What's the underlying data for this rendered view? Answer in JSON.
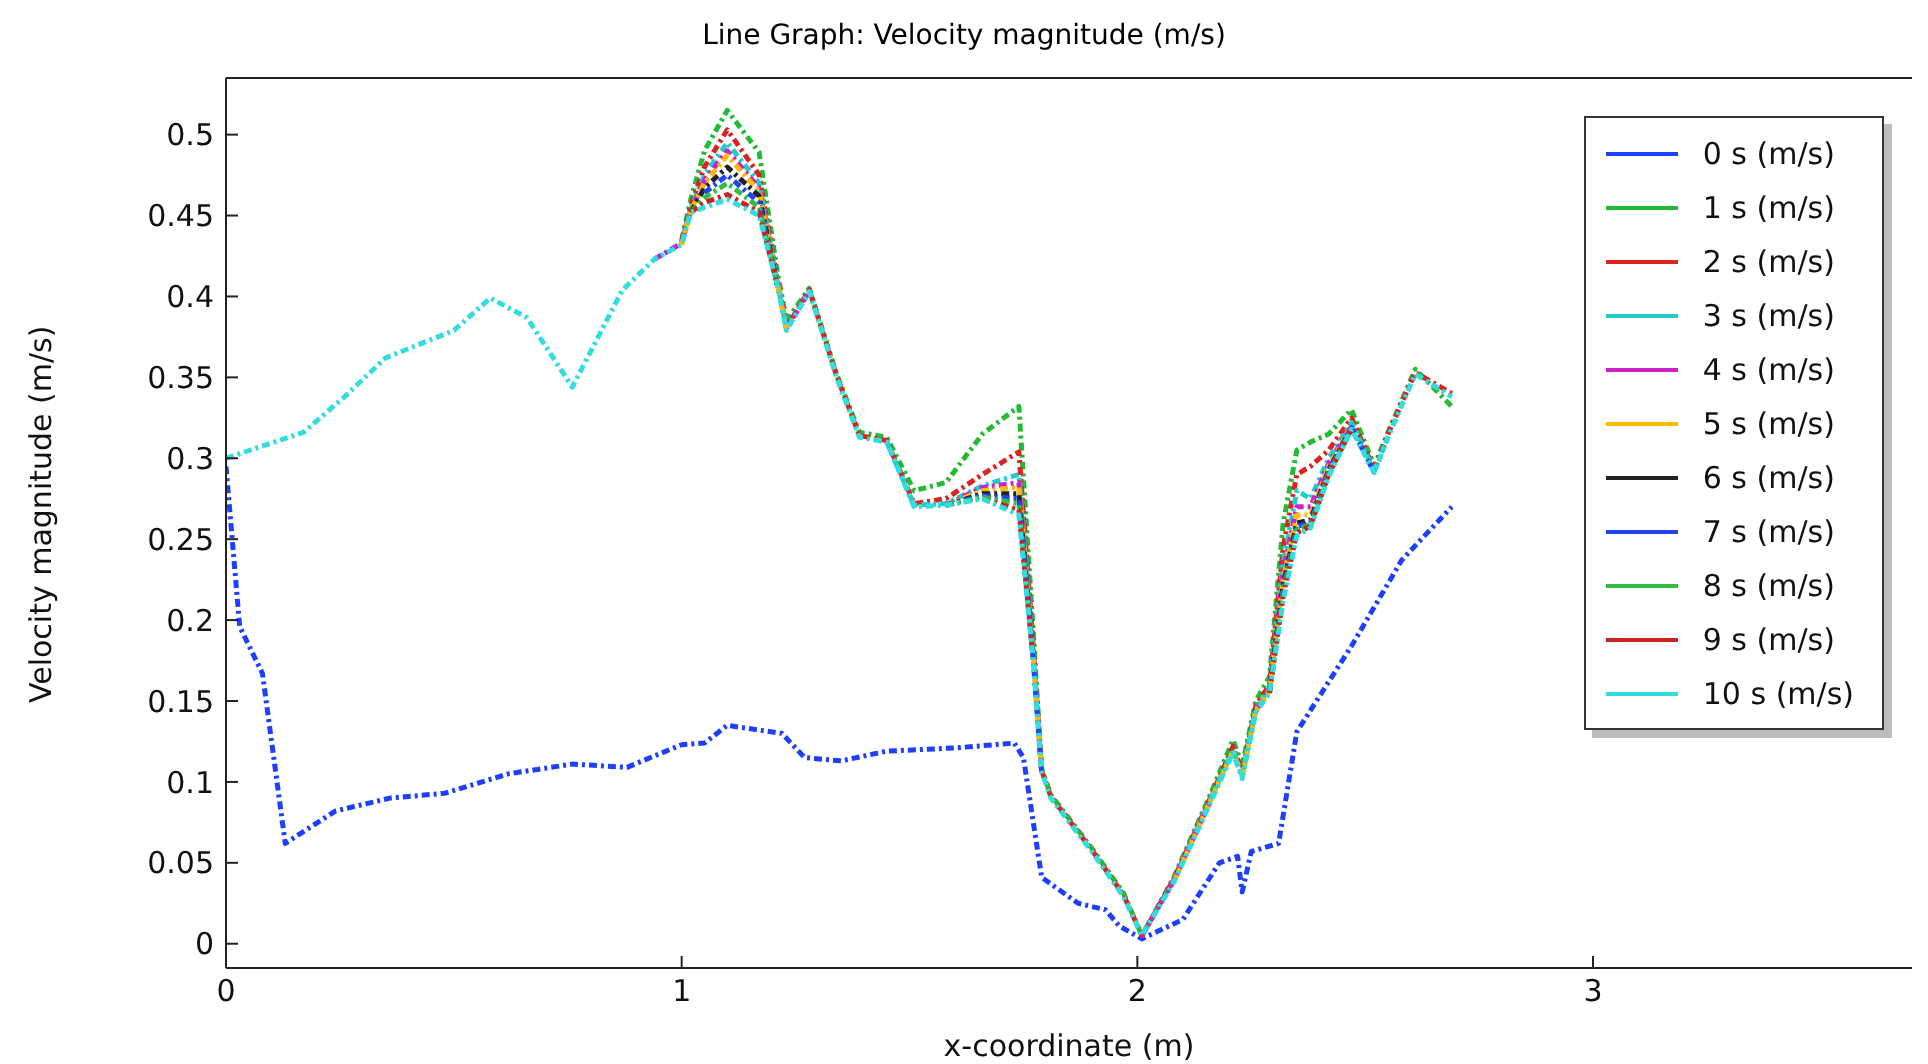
{
  "chart_data": {
    "type": "line",
    "title": "Line Graph: Velocity magnitude (m/s)",
    "xlabel": "x-coordinate (m)",
    "ylabel": "Velocity magnitude (m/s)",
    "x": [
      0,
      0.17,
      0.26,
      0.35,
      0.5,
      0.58,
      0.66,
      0.76,
      0.87,
      0.94,
      1.0,
      1.02,
      1.05,
      1.1,
      1.17,
      1.21,
      1.23,
      1.28,
      1.34,
      1.39,
      1.45,
      1.51,
      1.58,
      1.66,
      1.74,
      1.77,
      1.79,
      1.81,
      1.9,
      1.97,
      2.01,
      2.08,
      2.16,
      2.21,
      2.23,
      2.26,
      2.29,
      2.32,
      2.35,
      2.38,
      2.42,
      2.47,
      2.52,
      2.55,
      2.61,
      2.69
    ],
    "series": [
      {
        "name": "0 s (m/s)",
        "color": "#1f3fff",
        "x": [
          0,
          0.03,
          0.08,
          0.13,
          0.24,
          0.36,
          0.48,
          0.62,
          0.76,
          0.88,
          1.0,
          1.05,
          1.1,
          1.17,
          1.22,
          1.27,
          1.35,
          1.45,
          1.6,
          1.73,
          1.75,
          1.79,
          1.87,
          1.93,
          1.96,
          2.01,
          2.1,
          2.18,
          2.22,
          2.23,
          2.25,
          2.31,
          2.35,
          2.47,
          2.58,
          2.69
        ],
        "values": [
          0.295,
          0.196,
          0.167,
          0.062,
          0.082,
          0.09,
          0.093,
          0.105,
          0.111,
          0.109,
          0.123,
          0.124,
          0.135,
          0.132,
          0.13,
          0.115,
          0.113,
          0.119,
          0.121,
          0.124,
          0.115,
          0.041,
          0.025,
          0.021,
          0.011,
          0.003,
          0.015,
          0.05,
          0.054,
          0.032,
          0.057,
          0.062,
          0.131,
          0.184,
          0.237,
          0.27
        ]
      },
      {
        "name": "1 s (m/s)",
        "color": "#22bb33",
        "values": [
          null,
          null,
          null,
          null,
          null,
          null,
          null,
          null,
          null,
          null,
          0.435,
          0.46,
          0.49,
          0.515,
          0.489,
          0.415,
          0.385,
          0.405,
          0.352,
          0.316,
          0.313,
          0.28,
          0.285,
          0.315,
          0.332,
          0.2,
          0.108,
          0.092,
          0.059,
          0.031,
          0.005,
          0.041,
          0.092,
          0.126,
          0.11,
          0.15,
          0.165,
          0.26,
          0.305,
          0.31,
          0.315,
          0.33,
          0.295,
          0.316,
          0.355,
          0.332
        ]
      },
      {
        "name": "2 s (m/s)",
        "color": "#dd2222",
        "values": [
          null,
          null,
          null,
          null,
          null,
          null,
          null,
          null,
          null,
          null,
          0.434,
          0.456,
          0.48,
          0.503,
          0.475,
          0.41,
          0.381,
          0.404,
          0.351,
          0.314,
          0.311,
          0.272,
          0.275,
          0.29,
          0.304,
          0.19,
          0.107,
          0.091,
          0.058,
          0.03,
          0.005,
          0.04,
          0.09,
          0.122,
          0.106,
          0.147,
          0.16,
          0.245,
          0.29,
          0.295,
          0.305,
          0.325,
          0.293,
          0.315,
          0.353,
          0.34
        ]
      },
      {
        "name": "3 s (m/s)",
        "color": "#22cccc",
        "values": [
          null,
          null,
          null,
          null,
          null,
          null,
          null,
          null,
          null,
          0.423,
          0.433,
          0.454,
          0.475,
          0.495,
          0.47,
          0.409,
          0.38,
          null,
          null,
          null,
          0.31,
          0.271,
          0.272,
          0.283,
          0.29,
          0.185,
          0.106,
          null,
          null,
          null,
          0.005,
          0.039,
          0.089,
          0.12,
          0.104,
          0.145,
          0.158,
          0.235,
          0.28,
          0.275,
          0.3,
          0.322,
          0.292,
          0.313,
          null,
          null
        ]
      },
      {
        "name": "4 s (m/s)",
        "color": "#cc22cc",
        "values": [
          null,
          null,
          null,
          null,
          null,
          null,
          null,
          null,
          null,
          0.423,
          0.433,
          0.453,
          0.472,
          0.49,
          0.467,
          0.408,
          0.38,
          0.403,
          null,
          null,
          null,
          null,
          0.271,
          0.282,
          0.285,
          0.183,
          0.106,
          null,
          null,
          null,
          0.005,
          0.039,
          0.088,
          null,
          null,
          0.144,
          0.157,
          0.23,
          0.27,
          0.27,
          0.297,
          0.32,
          null,
          null,
          null,
          null
        ]
      },
      {
        "name": "5 s (m/s)",
        "color": "#ffbb00",
        "values": [
          null,
          null,
          null,
          null,
          null,
          null,
          null,
          null,
          null,
          null,
          0.432,
          0.453,
          0.47,
          0.487,
          0.465,
          0.408,
          0.379,
          null,
          null,
          null,
          null,
          null,
          0.271,
          0.28,
          0.282,
          0.182,
          0.106,
          null,
          null,
          null,
          null,
          0.038,
          0.088,
          0.119,
          0.103,
          0.144,
          0.156,
          0.225,
          0.265,
          0.265,
          0.295,
          0.32,
          null,
          null,
          null,
          null
        ]
      },
      {
        "name": "6 s (m/s)",
        "color": "#222222",
        "values": [
          null,
          null,
          null,
          null,
          null,
          null,
          null,
          null,
          null,
          null,
          null,
          0.452,
          0.467,
          0.48,
          0.462,
          0.407,
          null,
          null,
          null,
          null,
          null,
          null,
          0.271,
          0.278,
          0.278,
          0.181,
          null,
          null,
          null,
          null,
          null,
          null,
          null,
          null,
          null,
          null,
          0.156,
          0.222,
          0.26,
          0.262,
          0.293,
          0.319,
          null,
          null,
          null,
          null
        ]
      },
      {
        "name": "7 s (m/s)",
        "color": "#2244ee",
        "values": [
          null,
          null,
          null,
          null,
          null,
          null,
          null,
          null,
          null,
          null,
          null,
          null,
          0.464,
          0.475,
          0.458,
          0.407,
          null,
          null,
          null,
          null,
          null,
          null,
          0.271,
          0.277,
          0.275,
          0.181,
          0.106,
          null,
          null,
          null,
          null,
          null,
          null,
          null,
          null,
          null,
          0.155,
          0.22,
          0.258,
          0.26,
          0.292,
          0.319,
          0.291,
          null,
          null,
          null
        ]
      },
      {
        "name": "8 s (m/s)",
        "color": "#33bb44",
        "values": [
          null,
          null,
          null,
          null,
          null,
          null,
          null,
          null,
          null,
          null,
          null,
          0.452,
          0.461,
          0.47,
          0.455,
          0.407,
          null,
          null,
          null,
          null,
          null,
          null,
          0.271,
          0.276,
          0.272,
          0.18,
          null,
          null,
          null,
          null,
          null,
          null,
          null,
          null,
          null,
          null,
          0.155,
          0.217,
          0.256,
          0.259,
          0.291,
          0.318,
          null,
          null,
          null,
          null
        ]
      },
      {
        "name": "9 s (m/s)",
        "color": "#cc2222",
        "values": [
          null,
          null,
          null,
          null,
          null,
          null,
          null,
          null,
          null,
          null,
          null,
          0.452,
          0.458,
          0.463,
          0.452,
          0.407,
          null,
          null,
          null,
          null,
          null,
          null,
          null,
          0.275,
          0.268,
          0.18,
          null,
          null,
          null,
          null,
          null,
          null,
          null,
          null,
          null,
          null,
          0.155,
          0.215,
          0.254,
          0.258,
          0.29,
          0.318,
          null,
          null,
          null,
          null
        ]
      },
      {
        "name": "10 s (m/s)",
        "color": "#33dddd",
        "values": [
          0.3,
          0.316,
          0.338,
          0.362,
          0.379,
          0.399,
          0.387,
          0.344,
          0.404,
          0.423,
          0.432,
          0.452,
          0.455,
          0.46,
          0.45,
          0.407,
          0.379,
          0.403,
          0.35,
          0.313,
          0.31,
          0.27,
          0.271,
          0.275,
          0.265,
          0.18,
          0.106,
          0.09,
          0.057,
          0.029,
          0.005,
          0.038,
          0.087,
          0.118,
          0.102,
          0.143,
          0.155,
          0.212,
          0.252,
          0.257,
          0.289,
          0.318,
          0.291,
          0.313,
          0.352,
          0.338
        ]
      }
    ],
    "xlim": [
      0,
      3.7
    ],
    "xticks": [
      0,
      1,
      2,
      3
    ],
    "ylim": [
      -0.015,
      0.535
    ],
    "yticks": [
      0,
      0.05,
      0.1,
      0.15,
      0.2,
      0.25,
      0.3,
      0.35,
      0.4,
      0.45,
      0.5
    ],
    "grid": false,
    "legend": "top right",
    "marker": "none",
    "line_style": "dashed"
  }
}
